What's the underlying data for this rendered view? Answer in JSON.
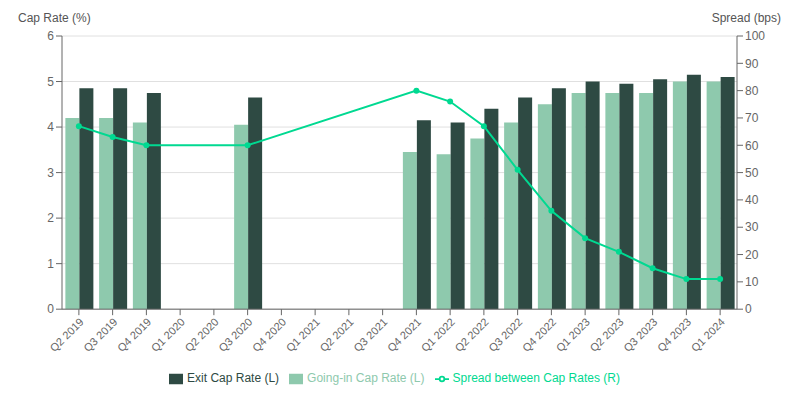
{
  "chart_data": {
    "type": "bar",
    "categories": [
      "Q2 2019",
      "Q3 2019",
      "Q4 2019",
      "Q1 2020",
      "Q2 2020",
      "Q3 2020",
      "Q4 2020",
      "Q1 2021",
      "Q2 2021",
      "Q3 2021",
      "Q4 2021",
      "Q1 2022",
      "Q2 2022",
      "Q3 2022",
      "Q4 2022",
      "Q1 2023",
      "Q2 2023",
      "Q3 2023",
      "Q4 2023",
      "Q1 2024"
    ],
    "series": [
      {
        "name": "Going-in Cap Rate (L)",
        "type": "bar",
        "color": "#8ec9ad",
        "values": [
          4.2,
          4.2,
          4.1,
          null,
          null,
          4.05,
          null,
          null,
          null,
          null,
          3.45,
          3.4,
          3.75,
          4.1,
          4.5,
          4.75,
          4.75,
          4.75,
          5.0,
          5.0
        ]
      },
      {
        "name": "Exit Cap Rate (L)",
        "type": "bar",
        "color": "#2e4a43",
        "values": [
          4.85,
          4.85,
          4.75,
          null,
          null,
          4.65,
          null,
          null,
          null,
          null,
          4.15,
          4.1,
          4.4,
          4.65,
          4.85,
          5.0,
          4.95,
          5.05,
          5.15,
          5.1
        ]
      },
      {
        "name": "Spread between Cap Rates (R)",
        "type": "line",
        "color": "#00d991",
        "axis": "y2",
        "marker": "circle",
        "values": [
          67,
          63,
          60,
          null,
          null,
          60,
          null,
          null,
          null,
          null,
          80,
          76,
          67,
          51,
          36,
          26,
          21,
          15,
          11,
          11
        ]
      }
    ],
    "y_label": "Cap Rate (%)",
    "y2_label": "Spread (bps)",
    "ylim": [
      0,
      6
    ],
    "yticks": [
      0,
      1,
      2,
      3,
      4,
      5,
      6
    ],
    "y2lim": [
      0,
      100
    ],
    "y2ticks": [
      0,
      10,
      20,
      30,
      40,
      50,
      60,
      70,
      80,
      90,
      100
    ],
    "grid": true,
    "legend": "bottom"
  }
}
